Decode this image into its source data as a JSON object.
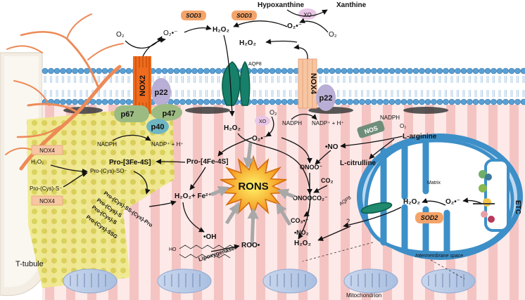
{
  "labels": {
    "o2_top": "O₂",
    "o2_rad_top": "O₂•⁻",
    "sod3_a": "SOD3",
    "sod3_b": "SOD3",
    "h2o2_top": "H₂O₂",
    "hypoxanthine": "Hypoxanthine",
    "xanthine": "Xanthine",
    "xo_top": "XO",
    "o2_rad_right": "O₂•⁻",
    "o2_right": "O₂",
    "h2o2_mid": "H₂O₂",
    "aqp8_top": "AQP8",
    "nox2": "NOX2",
    "p22_a": "p22",
    "p67": "p67",
    "p47": "p47",
    "p40": "p40",
    "nox4_mem": "NOX4",
    "p22_b": "p22",
    "nadph_a": "NADPH",
    "nadp_a": "NADP⁺ + H⁺",
    "nadph_b": "NADPH",
    "nadp_b": "NADP⁺ + H⁺",
    "h2o2_inner": "H₂O₂",
    "xo_mid": "XO",
    "o2_mid": "O₂",
    "o2_rad_mid": "O₂•⁻",
    "nos": "NOS",
    "nadph_c": "NADPH",
    "o2_c": "O₂",
    "l_arginine": "L-arginine",
    "no_rad": "•NO",
    "l_citrulline": "L-citrulline",
    "onoo": "ONOO⁻",
    "co2": "CO₂",
    "onoocco2": "ONOOCO₂⁻",
    "co3": "CO₃•⁻",
    "no2": "•NO₂",
    "pro_4fe": "Pro-[4Fe-4S]",
    "pro_3fe": "Pro-[3Fe-4S]",
    "fe": "H₂O₂+ Fe²⁺",
    "oh": "•OH",
    "rons": "RONS",
    "roo": "ROO•",
    "lipoxygenase": "Lipoxygenase",
    "ho": "HO",
    "h2o2_bottom": "H₂O₂",
    "nox4_a": "NOX4",
    "nox4_b": "NOX4",
    "h2o2_left": "H₂O₂",
    "procys_s": "Pro-(Cys)-S⁻",
    "procys_so": "Pro-(Cys)-SO⁻",
    "ss_1": "Pro-(Cys)-SS-(Cys)-Pro",
    "ss_2a": "Pro-(Cys)-S",
    "ss_2b": "Pro-(Cys)-S",
    "ssg": "Pro-(Cys)-SSG",
    "t_tubule": "T-tubule",
    "mitochondrion": "Mitochondrion",
    "matrix": "Matrix",
    "intermembrane": "Intermembrane space",
    "h2o2_mito": "H₂O₂",
    "o2_rad_mito": "O₂•⁻",
    "sod2": "SOD2",
    "aqp8_mito": "AQP8",
    "question": "?",
    "etc": "ETC"
  },
  "colors": {
    "sod_fill": "#f4a46a",
    "xo_fill": "#e9c6e6",
    "nox2_fill": "#ef6b1d",
    "subunit_green": "#9cbb83",
    "subunit_purple": "#b9aed5",
    "subunit_teal": "#6fb6c3",
    "nox4_fill": "#f7c6a3",
    "aqp8_fill": "#17806a",
    "nos_fill": "#6f8e7a",
    "mito_fill": "#3d8fc8",
    "membrane_bead": "#5aa0d4",
    "muscle_stripe": "#f3c0bf",
    "tubule_fill": "#e6e06a",
    "nerve": "#ed8a57",
    "rons_fill": "#f59b1c"
  }
}
